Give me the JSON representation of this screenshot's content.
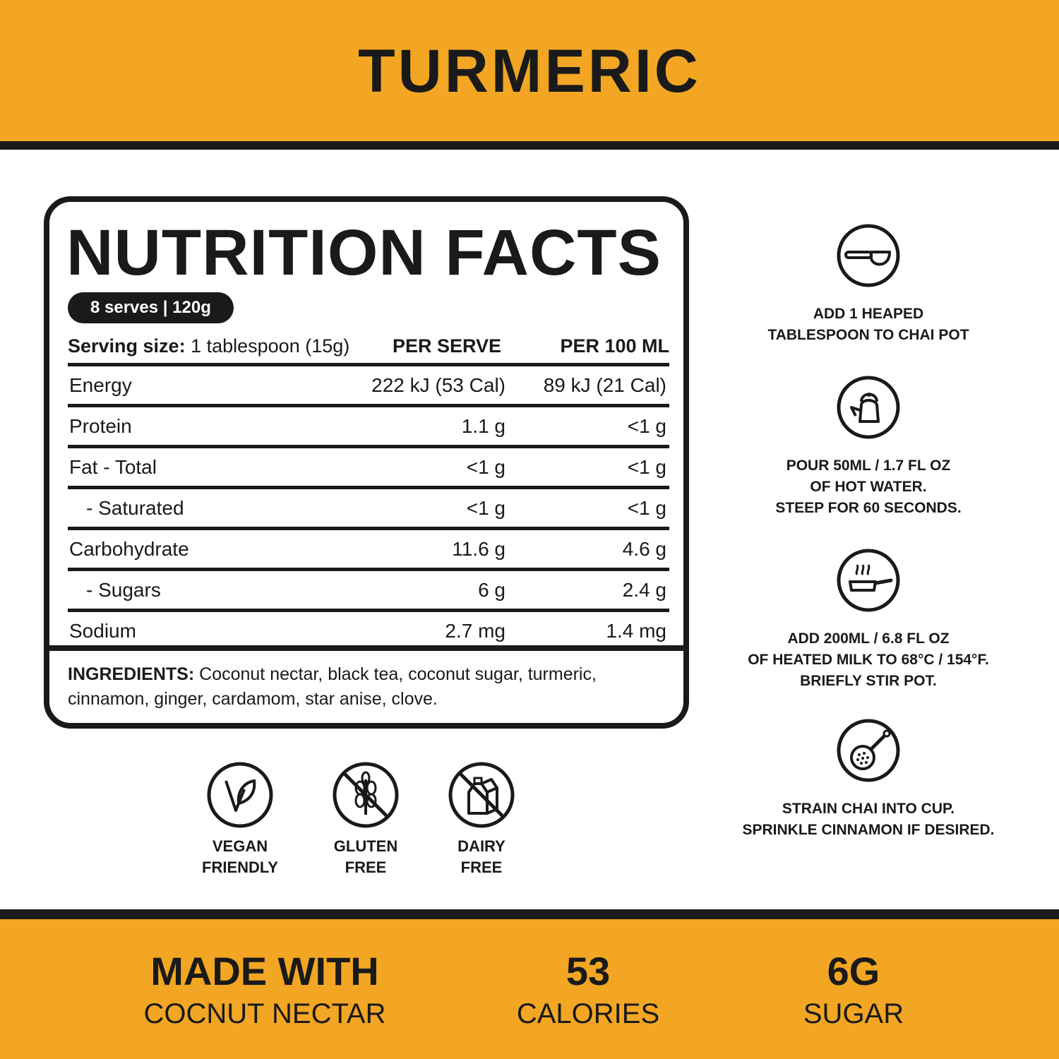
{
  "header": {
    "title": "TURMERIC"
  },
  "nutrition": {
    "title": "NUTRITION FACTS",
    "serves": "8 serves | 120g",
    "serving_size_label": "Serving size:",
    "serving_size_value": "1 tablespoon (15g)",
    "col_per_serve": "PER SERVE",
    "col_per_100": "PER 100 ML",
    "rows": [
      {
        "name": "Energy",
        "per_serve": "222 kJ (53 Cal)",
        "per_100": "89 kJ (21 Cal)"
      },
      {
        "name": "Protein",
        "per_serve": "1.1 g",
        "per_100": "<1 g"
      },
      {
        "name": "Fat - Total",
        "per_serve": "<1 g",
        "per_100": "<1 g"
      },
      {
        "name": "- Saturated",
        "per_serve": "<1 g",
        "per_100": "<1 g"
      },
      {
        "name": "Carbohydrate",
        "per_serve": "11.6 g",
        "per_100": "4.6 g"
      },
      {
        "name": "- Sugars",
        "per_serve": "6 g",
        "per_100": "2.4 g"
      },
      {
        "name": "Sodium",
        "per_serve": "2.7 mg",
        "per_100": "1.4 mg"
      }
    ],
    "ingredients_label": "INGREDIENTS:",
    "ingredients_text": "Coconut nectar, black tea, coconut sugar, turmeric, cinnamon, ginger, cardamom, star anise, clove."
  },
  "badges": [
    {
      "line1": "VEGAN",
      "line2": "FRIENDLY",
      "icon": "leaf-v-icon"
    },
    {
      "line1": "GLUTEN",
      "line2": "FREE",
      "icon": "no-wheat-icon"
    },
    {
      "line1": "DAIRY",
      "line2": "FREE",
      "icon": "no-milk-carton-icon"
    }
  ],
  "steps": [
    {
      "icon": "measuring-spoon-icon",
      "lines": [
        "ADD 1 HEAPED",
        "TABLESPOON TO CHAI POT"
      ]
    },
    {
      "icon": "kettle-icon",
      "lines": [
        "POUR 50ML / 1.7 FL OZ",
        "OF HOT WATER.",
        "STEEP FOR 60 SECONDS."
      ]
    },
    {
      "icon": "hot-pan-icon",
      "lines": [
        "ADD 200ML / 6.8 FL OZ",
        "OF HEATED MILK TO 68°C / 154°F.",
        "BRIEFLY STIR POT."
      ]
    },
    {
      "icon": "strainer-icon",
      "lines": [
        "STRAIN CHAI INTO CUP.",
        "SPRINKLE CINNAMON IF DESIRED."
      ]
    }
  ],
  "footer": {
    "made_with_big": "MADE WITH",
    "made_with_small": "COCNUT NECTAR",
    "calories_big": "53",
    "calories_small": "CALORIES",
    "sugar_big": "6G",
    "sugar_small": "SUGAR"
  },
  "colors": {
    "accent": "#F2A623",
    "ink": "#1a1a1a",
    "background": "#ffffff"
  }
}
